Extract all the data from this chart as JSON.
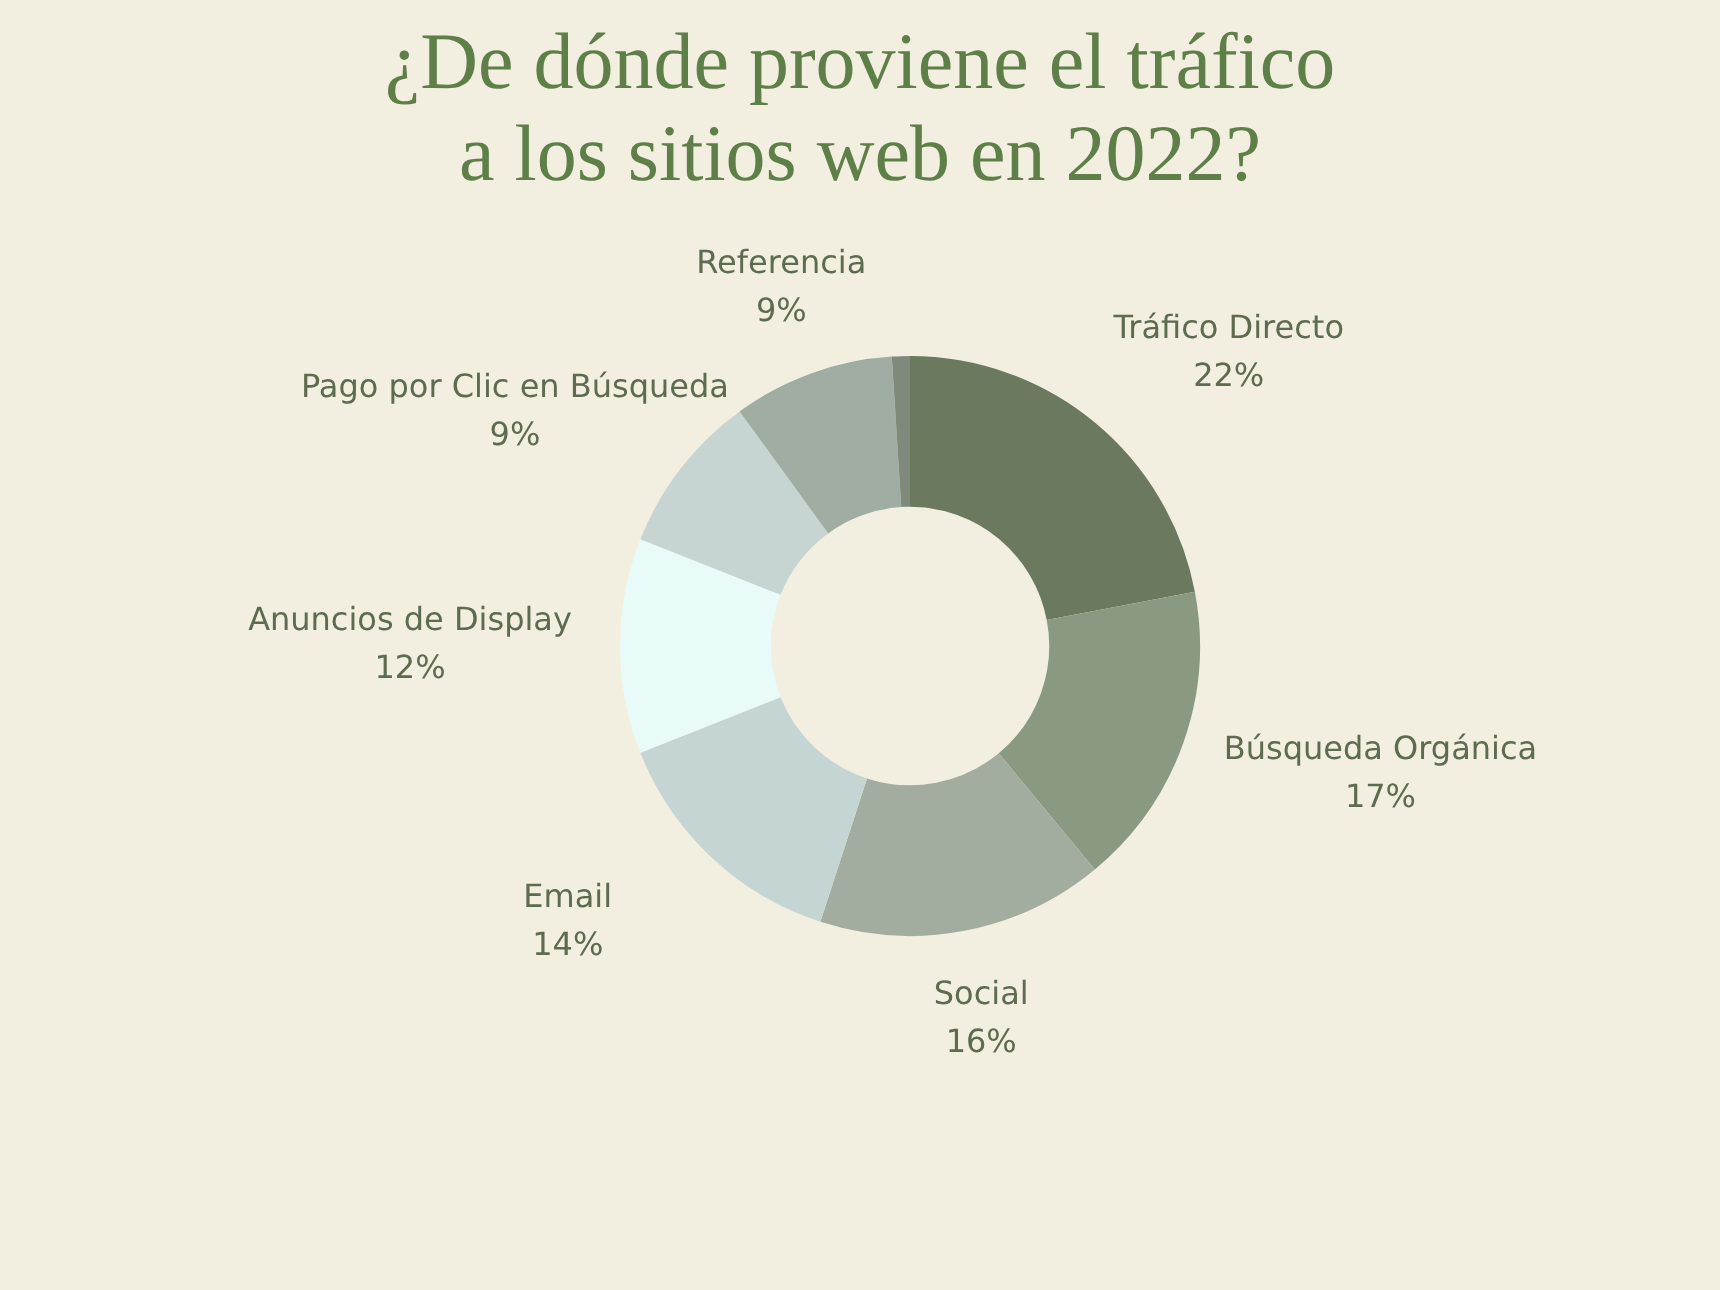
{
  "chart_data": {
    "type": "donut",
    "title": "¿De dónde proviene el tráfico\na los sitios web en 2022?",
    "categories": [
      "Tráfico Directo",
      "Búsqueda Orgánica",
      "Social",
      "Email",
      "Anuncios de Display",
      "Pago por Clic en Búsqueda",
      "Referencia",
      null
    ],
    "values": [
      22,
      17,
      16,
      14,
      12,
      9,
      9,
      1
    ],
    "value_labels": [
      "22%",
      "17%",
      "16%",
      "14%",
      "12%",
      "9%",
      "9%",
      null
    ],
    "colors": [
      "#6b7a5f",
      "#8a9a82",
      "#a3ad9f",
      "#c5d5d3",
      "#e8fbf8",
      "#c7d5d2",
      "#a0ada3",
      "#7f8a7d"
    ],
    "legend": false
  }
}
